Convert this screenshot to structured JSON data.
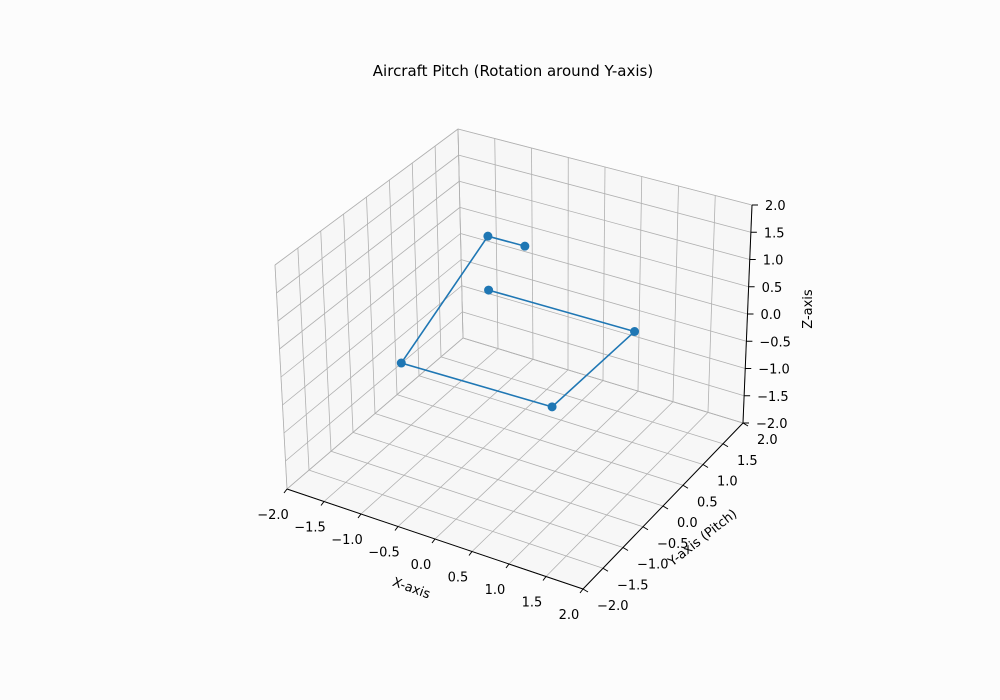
{
  "chart_data": {
    "type": "line",
    "title": "Aircraft Pitch (Rotation around Y-axis)",
    "xlabel": "X-axis",
    "ylabel": "Y-axis (Pitch)",
    "zlabel": "Z-axis",
    "xlim": [
      -2,
      2
    ],
    "ylim": [
      -2,
      2
    ],
    "zlim": [
      -2,
      2
    ],
    "grid": true,
    "x_ticks": [
      "−2.0",
      "−1.5",
      "−1.0",
      "−0.5",
      "0.0",
      "0.5",
      "1.0",
      "1.5",
      "2.0"
    ],
    "y_ticks": [
      "−2.0",
      "−1.5",
      "−1.0",
      "−0.5",
      "0.0",
      "0.5",
      "1.0",
      "1.5",
      "2.0"
    ],
    "z_ticks": [
      "−2.0",
      "−1.5",
      "−1.0",
      "−0.5",
      "0.0",
      "0.5",
      "1.0",
      "1.5",
      "2.0"
    ],
    "series": [
      {
        "color": "#1f77b4",
        "marker": "circle",
        "points": [
          {
            "x": -1.0,
            "y": 1.0,
            "z": 0.0
          },
          {
            "x": 1.0,
            "y": 1.0,
            "z": 0.0
          },
          {
            "x": 1.0,
            "y": -1.0,
            "z": 0.0
          },
          {
            "x": -1.0,
            "y": -1.0,
            "z": 0.0
          },
          {
            "x": -1.0,
            "y": 1.0,
            "z": 1.0
          },
          {
            "x": -0.5,
            "y": 1.0,
            "z": 1.0
          }
        ]
      }
    ]
  }
}
